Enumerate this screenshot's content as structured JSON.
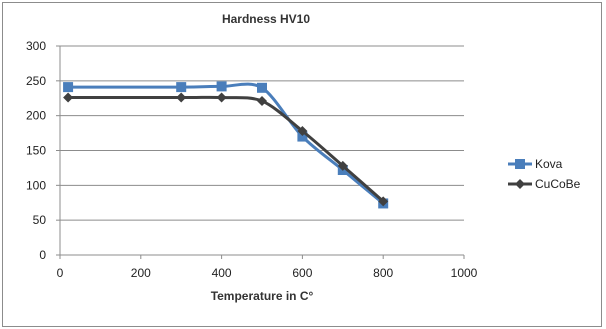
{
  "chart_data": {
    "type": "line",
    "title": "Hardness HV10",
    "xlabel": "Temperature in C°",
    "ylabel": "",
    "xlim": [
      0,
      1000
    ],
    "ylim": [
      0,
      300
    ],
    "x_ticks": [
      "0",
      "200",
      "400",
      "600",
      "800",
      "1000"
    ],
    "y_ticks": [
      "0",
      "50",
      "100",
      "150",
      "200",
      "250",
      "300"
    ],
    "grid": "horizontal",
    "legend_position": "right",
    "series": [
      {
        "name": "Kova",
        "color": "#4a7ebb",
        "marker": "square",
        "x": [
          20,
          300,
          400,
          500,
          600,
          700,
          800
        ],
        "y": [
          241,
          241,
          242,
          240,
          170,
          122,
          74
        ]
      },
      {
        "name": "CuCoBe",
        "color": "#404040",
        "marker": "diamond",
        "x": [
          20,
          300,
          400,
          500,
          600,
          700,
          800
        ],
        "y": [
          226,
          226,
          226,
          221,
          178,
          128,
          77
        ]
      }
    ]
  }
}
